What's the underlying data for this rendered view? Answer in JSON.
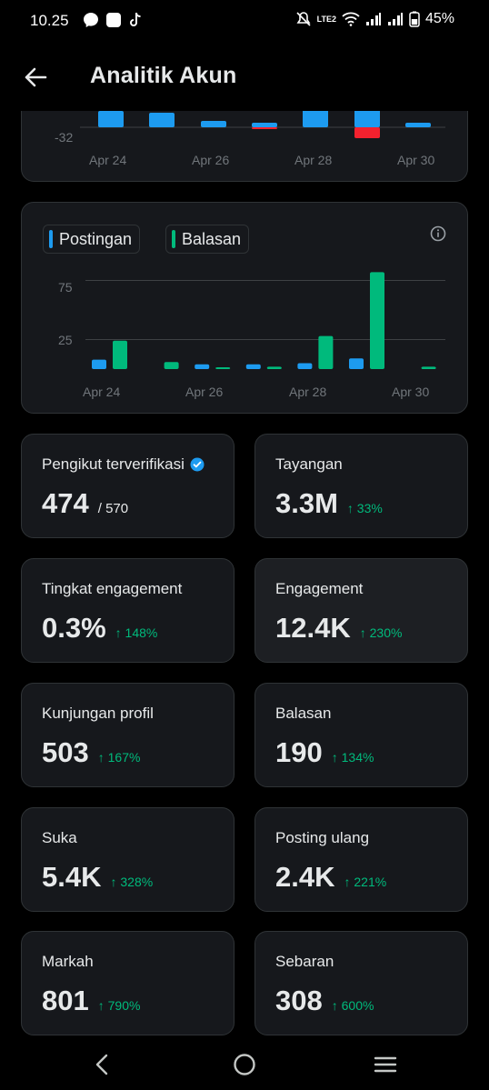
{
  "status": {
    "time": "10.25",
    "battery": "45%",
    "network_label": "LTE2"
  },
  "header": {
    "title": "Analitik Akun"
  },
  "chart_top": {
    "tick_label": "-32",
    "x_ticks": [
      "Apr 24",
      "Apr 26",
      "Apr 28",
      "Apr 30"
    ],
    "colors": {
      "positive": "#1d9bf0",
      "negative": "#f4212e"
    }
  },
  "chart_data": {
    "type": "bar",
    "categories": [
      "Apr 24",
      "Apr 25",
      "Apr 26",
      "Apr 27",
      "Apr 28",
      "Apr 29",
      "Apr 30"
    ],
    "series": [
      {
        "name": "Postingan",
        "color": "#1d9bf0",
        "values": [
          8,
          0,
          4,
          4,
          5,
          9,
          0
        ]
      },
      {
        "name": "Balasan",
        "color": "#00ba7c",
        "values": [
          24,
          6,
          1,
          2,
          28,
          82,
          2
        ]
      }
    ],
    "y_ticks": [
      75,
      25
    ],
    "x_ticks": [
      "Apr 24",
      "Apr 26",
      "Apr 28",
      "Apr 30"
    ],
    "ylim": [
      0,
      100
    ],
    "grid": true,
    "legend": "top-left"
  },
  "stats": [
    {
      "label": "Pengikut terverifikasi",
      "value": "474",
      "sub": "/ 570",
      "change": "",
      "verified": true
    },
    {
      "label": "Tayangan",
      "value": "3.3M",
      "sub": "",
      "change": "↑ 33%"
    },
    {
      "label": "Tingkat engagement",
      "value": "0.3%",
      "sub": "",
      "change": "↑ 148%"
    },
    {
      "label": "Engagement",
      "value": "12.4K",
      "sub": "",
      "change": "↑ 230%"
    },
    {
      "label": "Kunjungan profil",
      "value": "503",
      "sub": "",
      "change": "↑ 167%"
    },
    {
      "label": "Balasan",
      "value": "190",
      "sub": "",
      "change": "↑ 134%"
    },
    {
      "label": "Suka",
      "value": "5.4K",
      "sub": "",
      "change": "↑ 328%"
    },
    {
      "label": "Posting ulang",
      "value": "2.4K",
      "sub": "",
      "change": "↑ 221%"
    },
    {
      "label": "Markah",
      "value": "801",
      "sub": "",
      "change": "↑ 790%"
    },
    {
      "label": "Sebaran",
      "value": "308",
      "sub": "",
      "change": "↑ 600%"
    }
  ],
  "navbar": {
    "icons": [
      "back-icon",
      "home-icon",
      "menu-icon"
    ]
  }
}
